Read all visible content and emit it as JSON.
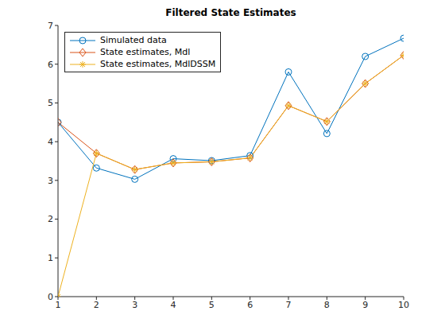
{
  "chart_data": {
    "type": "line",
    "title": "Filtered State Estimates",
    "x": [
      1,
      2,
      3,
      4,
      5,
      6,
      7,
      8,
      9,
      10
    ],
    "series": [
      {
        "name": "Simulated data",
        "color": "#0072bd",
        "marker": "circle",
        "values": [
          4.5,
          3.32,
          3.03,
          3.56,
          3.51,
          3.64,
          5.8,
          4.21,
          6.2,
          6.67
        ]
      },
      {
        "name": "State estimates, Mdl",
        "color": "#d95319",
        "marker": "diamond",
        "values": [
          4.5,
          3.7,
          3.28,
          3.45,
          3.48,
          3.58,
          4.93,
          4.52,
          5.5,
          6.23
        ]
      },
      {
        "name": "State estimates, MdlDSSM",
        "color": "#edb120",
        "marker": "star",
        "values": [
          0,
          3.7,
          3.28,
          3.45,
          3.48,
          3.58,
          4.93,
          4.52,
          5.5,
          6.23
        ]
      }
    ],
    "xlim": [
      1,
      10
    ],
    "xticks": [
      1,
      2,
      3,
      4,
      5,
      6,
      7,
      8,
      9,
      10
    ],
    "ylim": [
      0,
      7
    ],
    "yticks": [
      0,
      1,
      2,
      3,
      4,
      5,
      6,
      7
    ],
    "grid": false,
    "legend": "northwest"
  }
}
